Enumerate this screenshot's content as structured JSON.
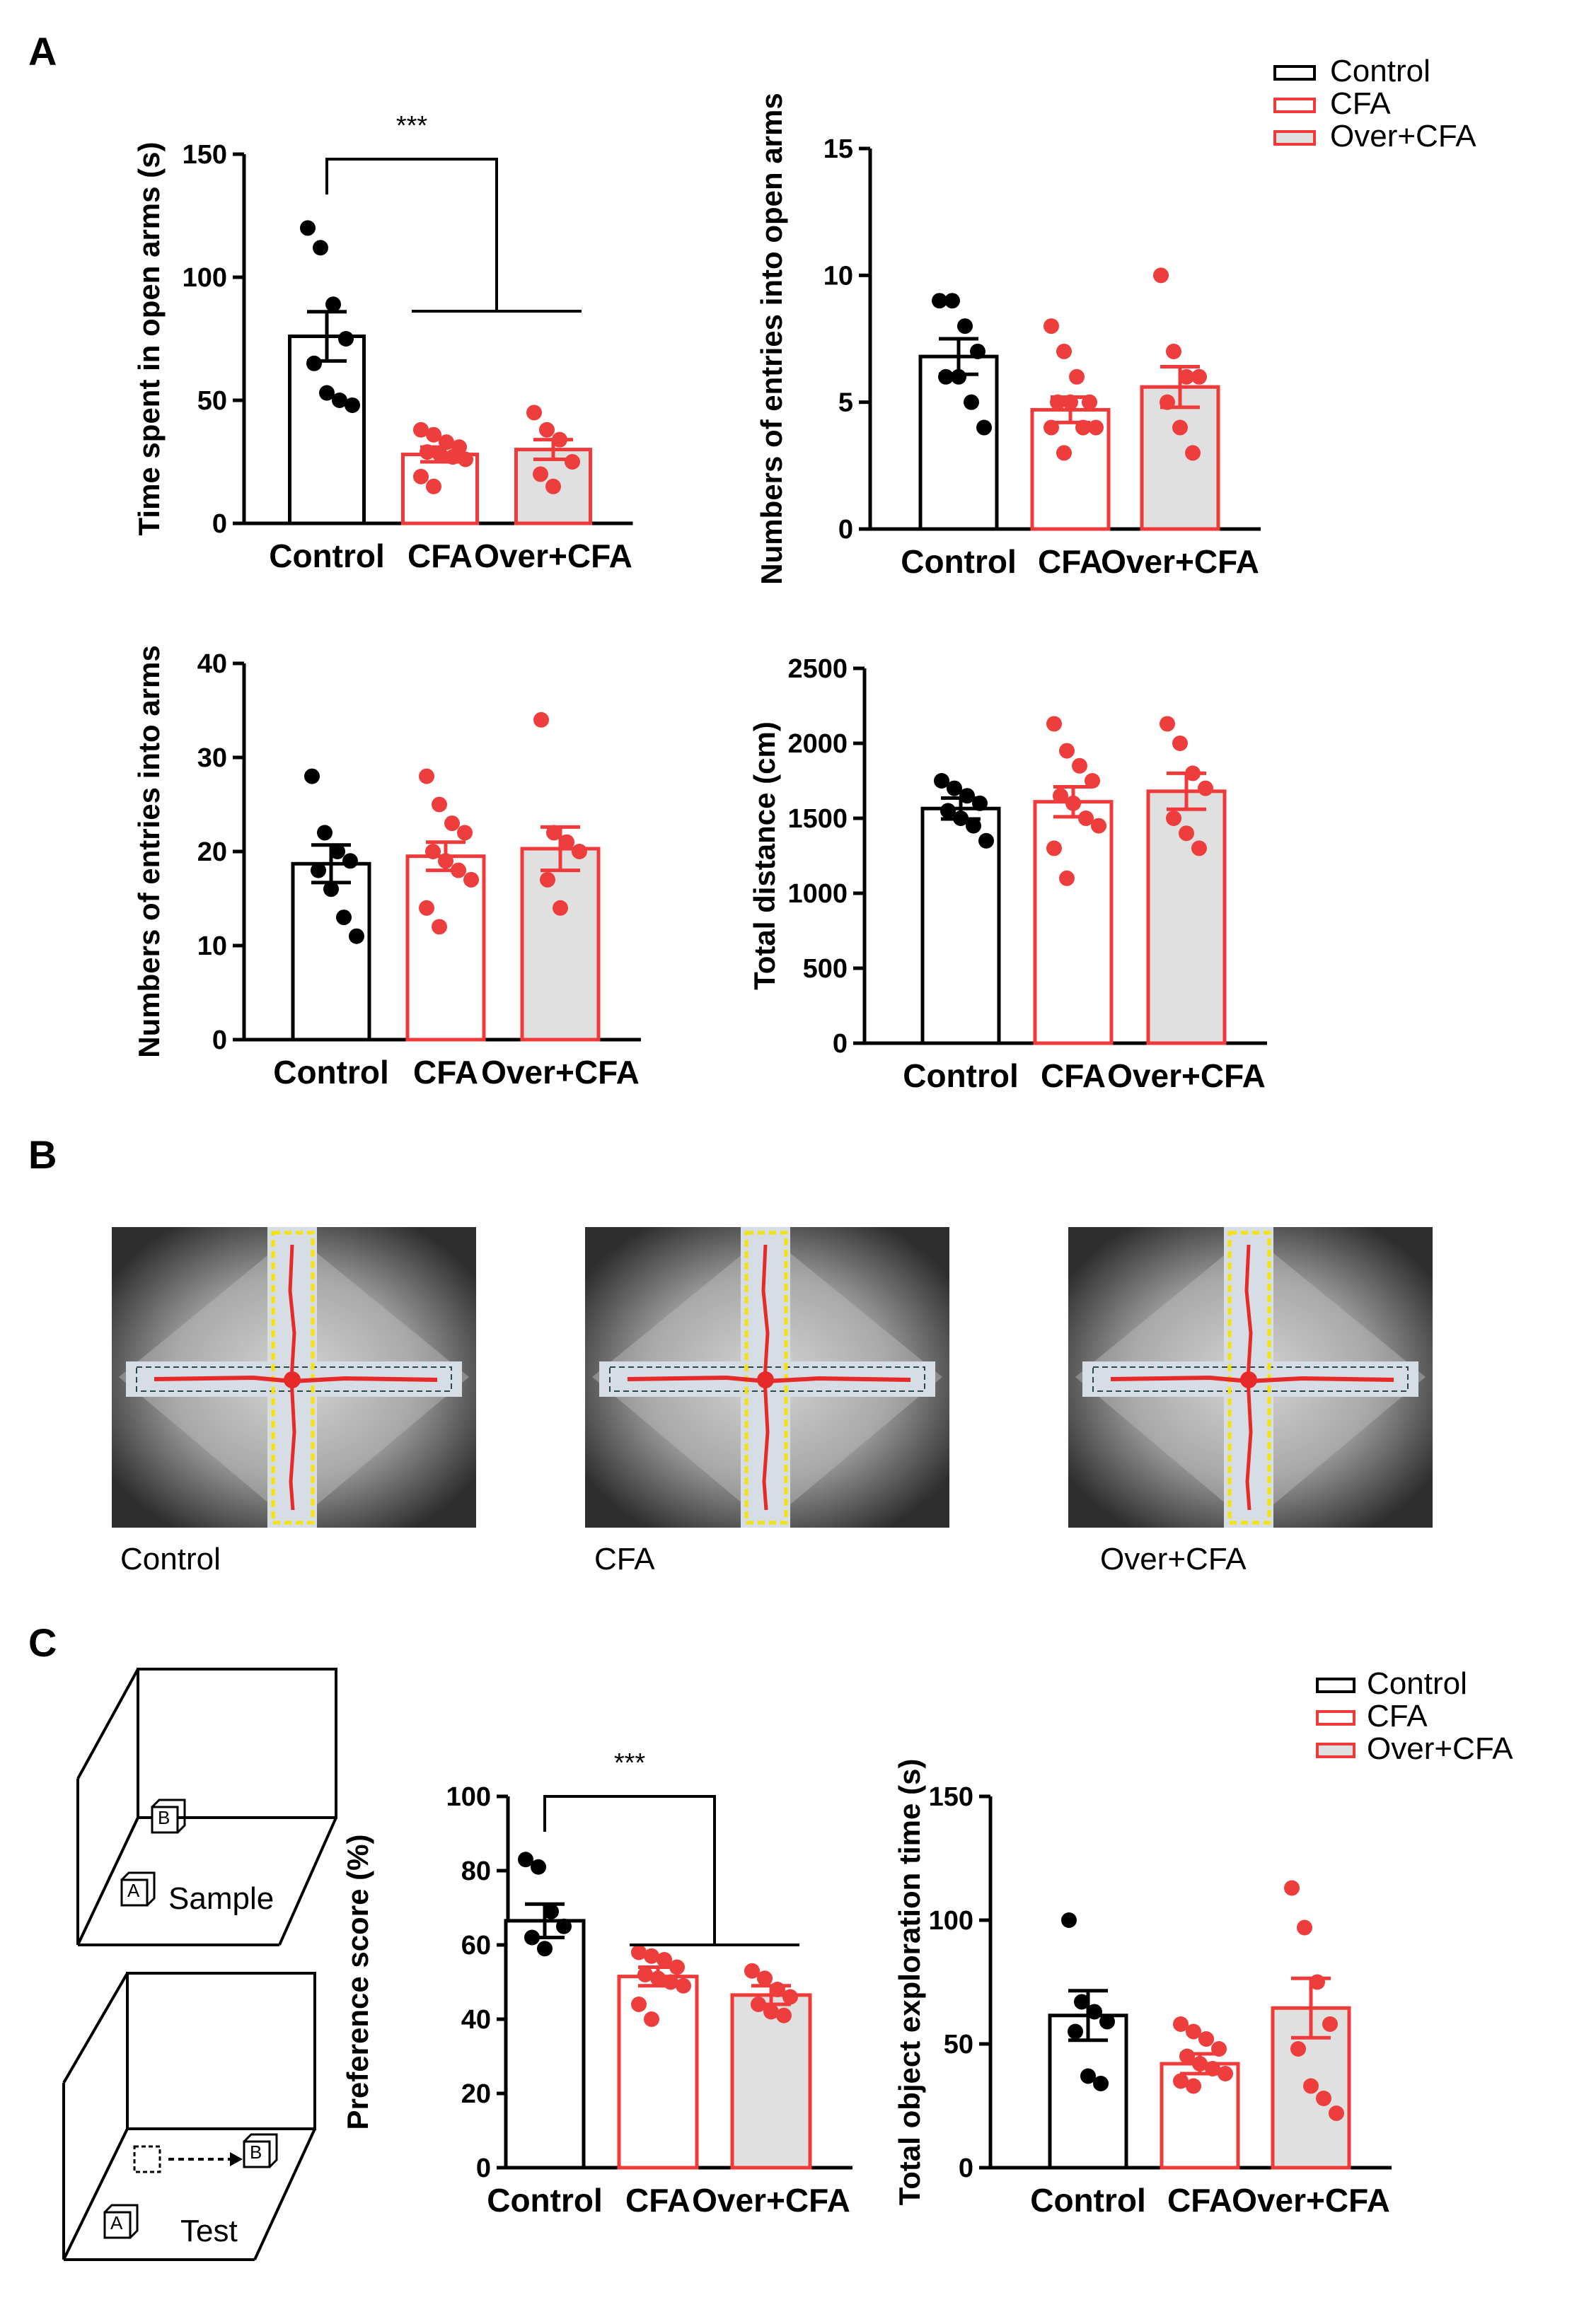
{
  "panels": {
    "A": "A",
    "B": "B",
    "C": "C"
  },
  "legend": [
    "Control",
    "CFA",
    "Over+CFA"
  ],
  "colors": {
    "control": "#000000",
    "cfa": "#f03a3a",
    "over_fill": "#e0e0e0",
    "dot_cfa": "#ee3d3d"
  },
  "sig": "***",
  "images": {
    "captions": [
      "Control",
      "CFA",
      "Over+CFA"
    ]
  },
  "schematic": {
    "sample": "Sample",
    "test": "Test",
    "a": "A",
    "b": "B"
  },
  "chart_data": [
    {
      "type": "bar",
      "categories": [
        "Control",
        "CFA",
        "Over+CFA"
      ],
      "ylabel": "Time spent in open arms (s)",
      "ylim": [
        0,
        150
      ],
      "yticks": [
        0,
        50,
        100,
        150
      ],
      "values": [
        76,
        28,
        30
      ],
      "sem": [
        10,
        3,
        4
      ],
      "points": [
        [
          120,
          112,
          89,
          75,
          65,
          53,
          50,
          48
        ],
        [
          38,
          36,
          33,
          31,
          29,
          28,
          27,
          26,
          19,
          15
        ],
        [
          45,
          38,
          34,
          25,
          20,
          15
        ]
      ],
      "sig": "***"
    },
    {
      "type": "bar",
      "categories": [
        "Control",
        "CFA",
        "Over+CFA"
      ],
      "ylabel": "Numbers of entries  into open arms",
      "ylim": [
        0,
        15
      ],
      "yticks": [
        0,
        5,
        10,
        15
      ],
      "values": [
        6.8,
        4.7,
        5.6
      ],
      "sem": [
        0.7,
        0.5,
        0.8
      ],
      "points": [
        [
          9,
          9,
          8,
          7,
          6,
          6,
          5,
          4
        ],
        [
          8,
          7,
          6,
          5,
          5,
          5,
          4,
          4,
          4,
          3
        ],
        [
          10,
          7,
          6,
          6,
          5,
          4,
          3
        ]
      ]
    },
    {
      "type": "bar",
      "categories": [
        "Control",
        "CFA",
        "Over+CFA"
      ],
      "ylabel": "Numbers of entries into arms",
      "ylim": [
        0,
        40
      ],
      "yticks": [
        0,
        10,
        20,
        30,
        40
      ],
      "values": [
        18.7,
        19.5,
        20.3
      ],
      "sem": [
        2,
        1.5,
        2.3
      ],
      "points": [
        [
          28,
          22,
          20,
          19,
          18,
          16,
          13,
          11
        ],
        [
          28,
          25,
          23,
          22,
          20,
          19,
          18,
          17,
          14,
          12
        ],
        [
          34,
          22,
          21,
          20,
          17,
          14
        ]
      ]
    },
    {
      "type": "bar",
      "categories": [
        "Control",
        "CFA",
        "Over+CFA"
      ],
      "ylabel": "Total distance (cm)",
      "ylim": [
        0,
        2500
      ],
      "yticks": [
        0,
        500,
        1000,
        1500,
        2000,
        2500
      ],
      "values": [
        1565,
        1610,
        1680
      ],
      "sem": [
        70,
        100,
        120
      ],
      "points": [
        [
          1750,
          1700,
          1650,
          1600,
          1550,
          1500,
          1450,
          1350
        ],
        [
          2130,
          1950,
          1850,
          1750,
          1650,
          1600,
          1500,
          1450,
          1300,
          1100
        ],
        [
          2130,
          2000,
          1800,
          1700,
          1500,
          1400,
          1300
        ]
      ]
    },
    {
      "type": "bar",
      "categories": [
        "Control",
        "CFA",
        "Over+CFA"
      ],
      "ylabel": "Preference score (%)",
      "ylim": [
        0,
        100
      ],
      "yticks": [
        0,
        20,
        40,
        60,
        80,
        100
      ],
      "values": [
        66.5,
        51.5,
        46.5
      ],
      "sem": [
        4.5,
        2.5,
        2.5
      ],
      "points": [
        [
          83,
          81,
          69,
          65,
          62,
          59
        ],
        [
          58,
          57,
          56,
          54,
          52,
          51,
          50,
          49,
          44,
          40
        ],
        [
          53,
          51,
          48,
          46,
          44,
          42,
          41
        ]
      ],
      "sig": "***"
    },
    {
      "type": "bar",
      "categories": [
        "Control",
        "CFA",
        "Over+CFA"
      ],
      "ylabel": "Total object exploration time (s)",
      "ylim": [
        0,
        150
      ],
      "yticks": [
        0,
        50,
        100,
        150
      ],
      "values": [
        61.5,
        42,
        64.5
      ],
      "sem": [
        10,
        4,
        12
      ],
      "points": [
        [
          100,
          67,
          63,
          59,
          55,
          37,
          34
        ],
        [
          58,
          55,
          52,
          48,
          45,
          42,
          40,
          38,
          35,
          33
        ],
        [
          113,
          97,
          75,
          58,
          48,
          33,
          28,
          22
        ]
      ]
    }
  ]
}
